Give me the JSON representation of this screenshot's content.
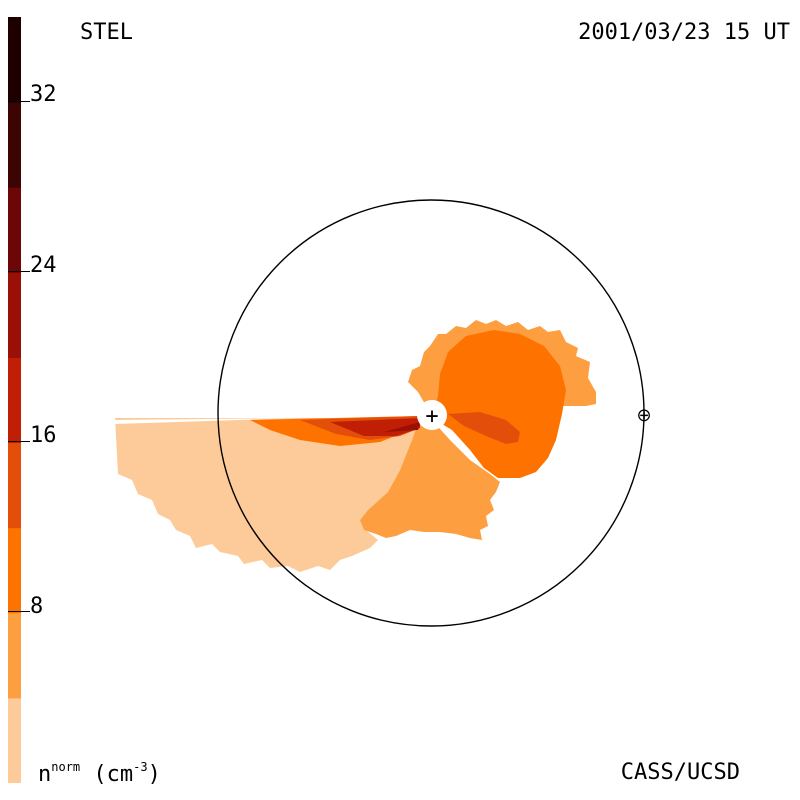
{
  "header": {
    "left_label": "STEL",
    "timestamp": "2001/03/23 15 UT"
  },
  "footer": {
    "credit": "CASS/UCSD",
    "unit_base": "n",
    "unit_sup": "norm",
    "unit_open": " (cm",
    "unit_exp": "-3",
    "unit_close": ")"
  },
  "colorbar": {
    "ticks": [
      "32",
      "24",
      "16",
      "8"
    ],
    "levels": [
      {
        "color": "#fdcb9a"
      },
      {
        "color": "#fd9f41"
      },
      {
        "color": "#fe7200"
      },
      {
        "color": "#e34e0a"
      },
      {
        "color": "#c01e05"
      },
      {
        "color": "#9a0f06"
      },
      {
        "color": "#6d0606"
      },
      {
        "color": "#3d0404"
      },
      {
        "color": "#1e0000"
      }
    ]
  },
  "symbols": {
    "sun": "+",
    "earth": "⊕"
  }
}
